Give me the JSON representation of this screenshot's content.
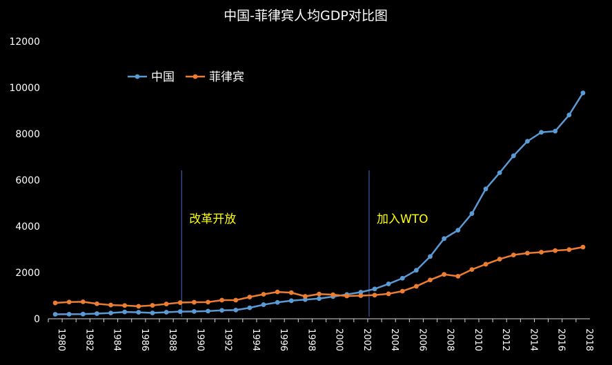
{
  "chart_data": {
    "type": "line",
    "title": "中国-菲律宾人均GDP对比图",
    "xlabel": "",
    "ylabel": "",
    "ylim": [
      0,
      12000
    ],
    "yticks": [
      0,
      2000,
      4000,
      6000,
      8000,
      10000,
      12000
    ],
    "x": [
      1980,
      1981,
      1982,
      1983,
      1984,
      1985,
      1986,
      1987,
      1988,
      1989,
      1990,
      1991,
      1992,
      1993,
      1994,
      1995,
      1996,
      1997,
      1998,
      1999,
      2000,
      2001,
      2002,
      2003,
      2004,
      2005,
      2006,
      2007,
      2008,
      2009,
      2010,
      2011,
      2012,
      2013,
      2014,
      2015,
      2016,
      2017,
      2018
    ],
    "xtick_labels": [
      "1980",
      "1982",
      "1984",
      "1986",
      "1988",
      "1990",
      "1992",
      "1994",
      "1996",
      "1998",
      "2000",
      "2002",
      "2004",
      "2006",
      "2008",
      "2010",
      "2012",
      "2014",
      "2016",
      "2018"
    ],
    "grid": false,
    "legend_position": "top-left",
    "series": [
      {
        "name": "中国",
        "color": "#5B9BD5",
        "values": [
          195,
          197,
          203,
          225,
          250,
          294,
          281,
          252,
          284,
          311,
          318,
          333,
          366,
          377,
          473,
          610,
          709,
          782,
          829,
          873,
          959,
          1053,
          1149,
          1289,
          1509,
          1753,
          2099,
          2694,
          3468,
          3832,
          4550,
          5618,
          6317,
          7051,
          7679,
          8067,
          8117,
          8817,
          9771
        ]
      },
      {
        "name": "菲律宾",
        "color": "#ED7D31",
        "values": [
          685,
          725,
          735,
          650,
          595,
          575,
          540,
          580,
          640,
          700,
          715,
          720,
          805,
          805,
          940,
          1060,
          1160,
          1130,
          970,
          1070,
          1040,
          985,
          1000,
          1025,
          1080,
          1195,
          1405,
          1680,
          1920,
          1840,
          2130,
          2360,
          2580,
          2760,
          2840,
          2880,
          2950,
          2990,
          3100
        ]
      }
    ],
    "annotations": [
      {
        "label": "改革开放",
        "x": 1989.1,
        "color": "#FFFF00"
      },
      {
        "label": "加入WTO",
        "x": 2002.6,
        "color": "#FFFF00"
      }
    ]
  }
}
